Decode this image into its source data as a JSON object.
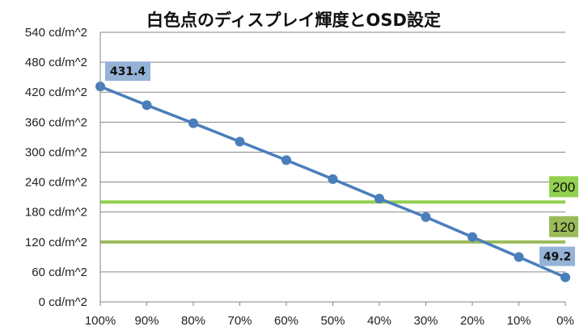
{
  "chart_data": {
    "type": "line",
    "title": "白色点のディスプレイ輝度とOSD設定",
    "xlabel": "",
    "ylabel": "",
    "categories": [
      "100%",
      "90%",
      "80%",
      "70%",
      "60%",
      "50%",
      "40%",
      "30%",
      "20%",
      "10%",
      "0%"
    ],
    "series": [
      {
        "values": [
          431.4,
          394,
          358,
          321,
          284,
          246,
          207,
          170,
          130,
          90,
          49.2
        ],
        "color": "#4a7ebb"
      }
    ],
    "ylim": [
      0,
      540
    ],
    "yticks": [
      "0 cd/m^2",
      "60 cd/m^2",
      "120 cd/m^2",
      "180 cd/m^2",
      "240 cd/m^2",
      "300 cd/m^2",
      "360 cd/m^2",
      "420 cd/m^2",
      "480 cd/m^2",
      "540 cd/m^2"
    ],
    "ytick_values": [
      0,
      60,
      120,
      180,
      240,
      300,
      360,
      420,
      480,
      540
    ],
    "grid": true,
    "legend": "none",
    "annotations": [
      {
        "label": "431.4",
        "index": 0,
        "color": "#95b3d7"
      },
      {
        "label": "49.2",
        "index": 10,
        "color": "#95b3d7"
      }
    ],
    "reference_lines": [
      {
        "label": "200",
        "value": 200,
        "color": "#92d050"
      },
      {
        "label": "120",
        "value": 120,
        "color": "#9bbb59"
      }
    ]
  }
}
